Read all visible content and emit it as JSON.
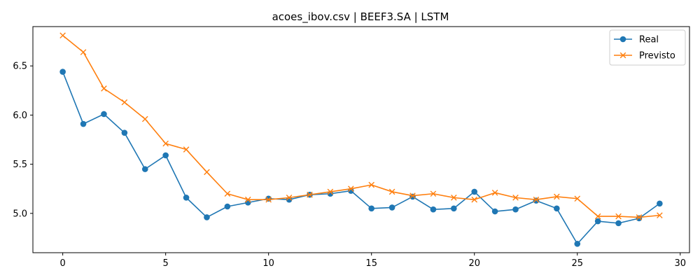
{
  "chart_data": {
    "type": "line",
    "title": "acoes_ibov.csv | BEEF3.SA | LSTM",
    "xlabel": "",
    "ylabel": "",
    "x": [
      0,
      1,
      2,
      3,
      4,
      5,
      6,
      7,
      8,
      9,
      10,
      11,
      12,
      13,
      14,
      15,
      16,
      17,
      18,
      19,
      20,
      21,
      22,
      23,
      24,
      25,
      26,
      27,
      28,
      29
    ],
    "xlim": [
      -1.45,
      30.45
    ],
    "ylim": [
      4.6,
      6.9
    ],
    "xticks": [
      0,
      5,
      10,
      15,
      20,
      25,
      30
    ],
    "xtick_labels": [
      "0",
      "5",
      "10",
      "15",
      "20",
      "25",
      "30"
    ],
    "yticks": [
      5.0,
      5.5,
      6.0,
      6.5
    ],
    "ytick_labels": [
      "5.0",
      "5.5",
      "6.0",
      "6.5"
    ],
    "grid": false,
    "legend_position": "top-right",
    "series": [
      {
        "name": "Real",
        "color": "#1f77b4",
        "marker": "circle",
        "values": [
          6.44,
          5.91,
          6.01,
          5.82,
          5.45,
          5.59,
          5.16,
          4.96,
          5.07,
          5.11,
          5.15,
          5.14,
          5.19,
          5.2,
          5.23,
          5.05,
          5.06,
          5.17,
          5.04,
          5.05,
          5.22,
          5.02,
          5.04,
          5.13,
          5.05,
          4.69,
          4.92,
          4.9,
          4.95,
          5.1
        ]
      },
      {
        "name": "Previsto",
        "color": "#ff7f0e",
        "marker": "x",
        "values": [
          6.81,
          6.64,
          6.27,
          6.13,
          5.96,
          5.71,
          5.65,
          5.42,
          5.2,
          5.14,
          5.14,
          5.16,
          5.19,
          5.22,
          5.25,
          5.29,
          5.22,
          5.18,
          5.2,
          5.16,
          5.14,
          5.21,
          5.16,
          5.14,
          5.17,
          5.15,
          4.97,
          4.97,
          4.96,
          4.98
        ]
      }
    ]
  }
}
